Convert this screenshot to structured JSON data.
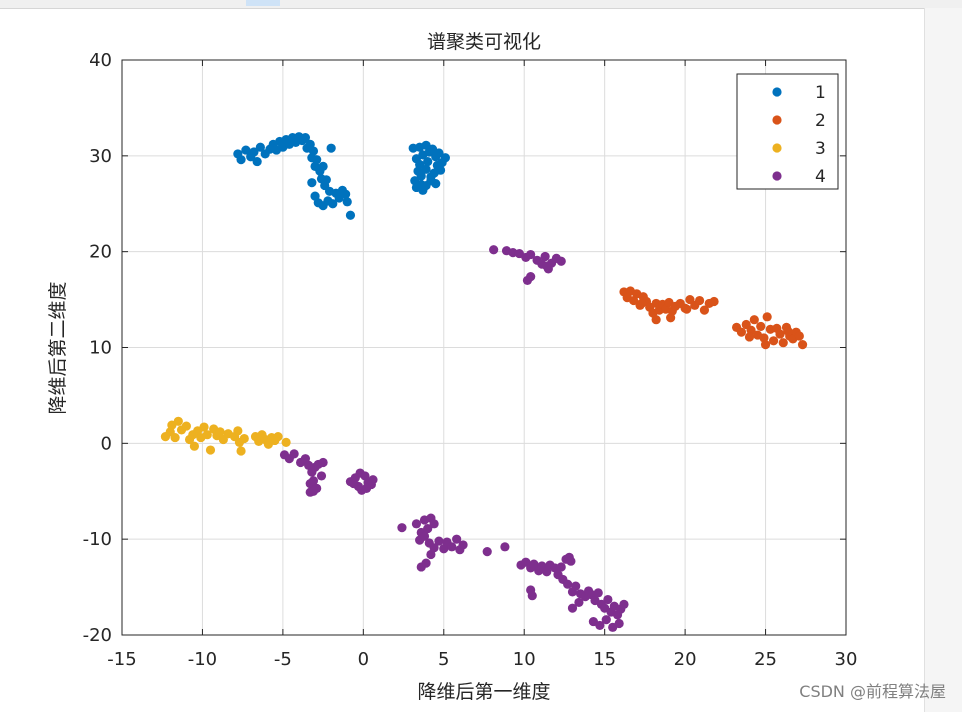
{
  "chart_data": {
    "type": "scatter",
    "title": "谱聚类可视化",
    "xlabel": "降维后第一维度",
    "ylabel": "降维后第二维度",
    "xlim": [
      -15,
      30
    ],
    "ylim": [
      -20,
      40
    ],
    "xticks": [
      -15,
      -10,
      -5,
      0,
      5,
      10,
      15,
      20,
      25,
      30
    ],
    "yticks": [
      -20,
      -10,
      0,
      10,
      20,
      30,
      40
    ],
    "grid": true,
    "legend_position": "top-right",
    "series": [
      {
        "name": "1",
        "color": "#0072BD",
        "points": [
          [
            -7.8,
            30.2
          ],
          [
            -7.6,
            29.6
          ],
          [
            -7.3,
            30.6
          ],
          [
            -7.0,
            29.9
          ],
          [
            -6.8,
            30.4
          ],
          [
            -6.6,
            29.4
          ],
          [
            -6.4,
            30.9
          ],
          [
            -6.1,
            30.2
          ],
          [
            -5.8,
            30.7
          ],
          [
            -5.6,
            31.2
          ],
          [
            -5.4,
            30.6
          ],
          [
            -5.2,
            31.5
          ],
          [
            -5.0,
            30.9
          ],
          [
            -4.8,
            31.7
          ],
          [
            -4.6,
            31.2
          ],
          [
            -4.4,
            31.9
          ],
          [
            -4.2,
            31.4
          ],
          [
            -4.0,
            32.0
          ],
          [
            -3.8,
            31.6
          ],
          [
            -3.6,
            31.9
          ],
          [
            -3.5,
            30.8
          ],
          [
            -3.3,
            31.2
          ],
          [
            -3.2,
            29.8
          ],
          [
            -3.1,
            30.5
          ],
          [
            -3.0,
            28.9
          ],
          [
            -2.9,
            29.6
          ],
          [
            -2.7,
            28.4
          ],
          [
            -2.6,
            27.6
          ],
          [
            -2.5,
            28.9
          ],
          [
            -2.4,
            26.9
          ],
          [
            -2.3,
            27.5
          ],
          [
            -2.1,
            26.3
          ],
          [
            -2.0,
            30.8
          ],
          [
            -3.2,
            27.2
          ],
          [
            -3.0,
            25.8
          ],
          [
            -2.8,
            25.1
          ],
          [
            -2.5,
            24.8
          ],
          [
            -2.2,
            25.3
          ],
          [
            -1.9,
            25.0
          ],
          [
            -1.7,
            26.1
          ],
          [
            -1.5,
            25.6
          ],
          [
            -1.3,
            26.4
          ],
          [
            -1.1,
            26.0
          ],
          [
            -0.8,
            23.8
          ],
          [
            -1.0,
            25.2
          ],
          [
            3.1,
            30.8
          ],
          [
            3.3,
            29.7
          ],
          [
            3.5,
            30.9
          ],
          [
            3.7,
            30.1
          ],
          [
            3.9,
            31.1
          ],
          [
            4.1,
            30.4
          ],
          [
            4.3,
            30.7
          ],
          [
            4.5,
            29.9
          ],
          [
            4.7,
            30.3
          ],
          [
            4.9,
            29.3
          ],
          [
            5.1,
            29.8
          ],
          [
            4.8,
            28.5
          ],
          [
            4.6,
            29.0
          ],
          [
            4.4,
            28.2
          ],
          [
            4.2,
            27.8
          ],
          [
            3.9,
            28.6
          ],
          [
            3.6,
            27.9
          ],
          [
            3.4,
            28.4
          ],
          [
            3.2,
            27.4
          ],
          [
            3.3,
            26.7
          ],
          [
            3.6,
            27.0
          ],
          [
            3.9,
            26.9
          ],
          [
            4.2,
            27.4
          ],
          [
            4.5,
            27.1
          ],
          [
            4.0,
            29.4
          ],
          [
            3.5,
            29.1
          ],
          [
            3.7,
            26.4
          ]
        ]
      },
      {
        "name": "2",
        "color": "#D95319",
        "points": [
          [
            16.2,
            15.8
          ],
          [
            16.4,
            15.2
          ],
          [
            16.6,
            15.9
          ],
          [
            16.8,
            14.9
          ],
          [
            17.0,
            15.6
          ],
          [
            17.2,
            14.4
          ],
          [
            17.4,
            15.3
          ],
          [
            17.6,
            14.8
          ],
          [
            17.8,
            14.2
          ],
          [
            18.0,
            13.6
          ],
          [
            18.2,
            14.6
          ],
          [
            18.4,
            13.9
          ],
          [
            18.6,
            14.5
          ],
          [
            18.8,
            14.0
          ],
          [
            19.0,
            14.7
          ],
          [
            19.2,
            13.8
          ],
          [
            19.4,
            14.3
          ],
          [
            19.7,
            14.6
          ],
          [
            20.0,
            14.1
          ],
          [
            20.3,
            15.0
          ],
          [
            20.6,
            14.4
          ],
          [
            20.9,
            14.9
          ],
          [
            21.2,
            13.9
          ],
          [
            21.5,
            14.6
          ],
          [
            21.8,
            14.8
          ],
          [
            20.1,
            14.0
          ],
          [
            19.1,
            13.1
          ],
          [
            18.2,
            12.9
          ],
          [
            17.3,
            14.6
          ],
          [
            23.2,
            12.1
          ],
          [
            23.5,
            11.6
          ],
          [
            23.8,
            12.4
          ],
          [
            24.1,
            11.8
          ],
          [
            24.3,
            12.9
          ],
          [
            24.5,
            11.3
          ],
          [
            24.7,
            12.2
          ],
          [
            24.9,
            11.0
          ],
          [
            25.1,
            13.2
          ],
          [
            25.3,
            11.9
          ],
          [
            25.5,
            10.7
          ],
          [
            25.7,
            12.0
          ],
          [
            25.9,
            11.4
          ],
          [
            26.1,
            10.5
          ],
          [
            26.3,
            12.1
          ],
          [
            26.5,
            11.2
          ],
          [
            26.7,
            10.9
          ],
          [
            26.9,
            11.6
          ],
          [
            27.1,
            11.2
          ],
          [
            27.3,
            10.3
          ],
          [
            24.0,
            11.1
          ],
          [
            25.0,
            10.3
          ],
          [
            26.4,
            11.7
          ]
        ]
      },
      {
        "name": "3",
        "color": "#EDB120",
        "points": [
          [
            -12.3,
            0.7
          ],
          [
            -12.0,
            1.2
          ],
          [
            -11.7,
            0.6
          ],
          [
            -11.5,
            2.3
          ],
          [
            -11.3,
            1.4
          ],
          [
            -11.0,
            1.8
          ],
          [
            -10.8,
            0.4
          ],
          [
            -10.5,
            -0.3
          ],
          [
            -10.3,
            1.3
          ],
          [
            -10.1,
            0.6
          ],
          [
            -9.9,
            1.7
          ],
          [
            -9.7,
            0.9
          ],
          [
            -9.5,
            -0.7
          ],
          [
            -9.3,
            1.5
          ],
          [
            -9.1,
            0.8
          ],
          [
            -8.9,
            1.2
          ],
          [
            -8.7,
            0.4
          ],
          [
            -8.4,
            1.0
          ],
          [
            -8.0,
            0.7
          ],
          [
            -7.8,
            1.3
          ],
          [
            -7.6,
            -0.8
          ],
          [
            -7.4,
            0.5
          ],
          [
            -7.7,
            0.1
          ],
          [
            -6.7,
            0.7
          ],
          [
            -6.5,
            0.2
          ],
          [
            -6.3,
            0.9
          ],
          [
            -6.1,
            0.4
          ],
          [
            -5.9,
            -0.1
          ],
          [
            -5.7,
            0.6
          ],
          [
            -5.5,
            0.3
          ],
          [
            -5.3,
            0.7
          ],
          [
            -4.8,
            0.1
          ],
          [
            -11.9,
            1.9
          ],
          [
            -10.6,
            0.9
          ]
        ]
      },
      {
        "name": "4",
        "color": "#7E2F8E",
        "points": [
          [
            8.1,
            20.2
          ],
          [
            8.9,
            20.1
          ],
          [
            9.3,
            19.9
          ],
          [
            9.7,
            19.8
          ],
          [
            10.1,
            19.4
          ],
          [
            10.4,
            19.7
          ],
          [
            10.8,
            19.1
          ],
          [
            11.1,
            18.7
          ],
          [
            11.3,
            19.5
          ],
          [
            11.5,
            18.2
          ],
          [
            11.7,
            18.8
          ],
          [
            12.0,
            19.3
          ],
          [
            12.3,
            19.0
          ],
          [
            10.2,
            17.0
          ],
          [
            10.4,
            17.4
          ],
          [
            11.4,
            18.5
          ],
          [
            -4.9,
            -1.2
          ],
          [
            -4.6,
            -1.6
          ],
          [
            -4.3,
            -1.1
          ],
          [
            -3.9,
            -2.0
          ],
          [
            -3.6,
            -1.6
          ],
          [
            -3.4,
            -2.3
          ],
          [
            -3.2,
            -3.0
          ],
          [
            -3.0,
            -2.5
          ],
          [
            -2.8,
            -2.2
          ],
          [
            -2.6,
            -3.4
          ],
          [
            -2.5,
            -2.0
          ],
          [
            -3.3,
            -4.2
          ],
          [
            -3.1,
            -3.9
          ],
          [
            -3.3,
            -5.1
          ],
          [
            -2.9,
            -4.7
          ],
          [
            -3.1,
            -5.0
          ],
          [
            -0.8,
            -4.0
          ],
          [
            -0.5,
            -3.6
          ],
          [
            -0.2,
            -3.1
          ],
          [
            0.1,
            -3.4
          ],
          [
            0.3,
            -4.1
          ],
          [
            0.5,
            -4.3
          ],
          [
            -0.1,
            -4.9
          ],
          [
            -0.3,
            -4.5
          ],
          [
            0.2,
            -4.7
          ],
          [
            -0.6,
            -4.2
          ],
          [
            0.6,
            -3.8
          ],
          [
            2.4,
            -8.8
          ],
          [
            3.3,
            -8.4
          ],
          [
            3.6,
            -9.3
          ],
          [
            3.8,
            -8.0
          ],
          [
            4.0,
            -8.9
          ],
          [
            4.2,
            -7.8
          ],
          [
            4.4,
            -8.4
          ],
          [
            3.5,
            -10.1
          ],
          [
            3.8,
            -9.7
          ],
          [
            4.1,
            -10.4
          ],
          [
            4.4,
            -10.9
          ],
          [
            4.7,
            -10.2
          ],
          [
            5.0,
            -11.0
          ],
          [
            5.2,
            -10.3
          ],
          [
            5.5,
            -10.8
          ],
          [
            5.8,
            -10.0
          ],
          [
            6.0,
            -11.1
          ],
          [
            6.2,
            -10.6
          ],
          [
            3.6,
            -12.9
          ],
          [
            3.9,
            -12.5
          ],
          [
            4.2,
            -11.6
          ],
          [
            7.7,
            -11.3
          ],
          [
            8.8,
            -10.8
          ],
          [
            9.8,
            -12.7
          ],
          [
            10.1,
            -12.4
          ],
          [
            10.4,
            -13.0
          ],
          [
            10.6,
            -12.6
          ],
          [
            10.9,
            -13.3
          ],
          [
            11.1,
            -12.8
          ],
          [
            11.4,
            -13.4
          ],
          [
            11.6,
            -12.7
          ],
          [
            11.9,
            -13.0
          ],
          [
            12.1,
            -13.7
          ],
          [
            12.3,
            -12.9
          ],
          [
            12.6,
            -12.1
          ],
          [
            12.8,
            -11.9
          ],
          [
            12.9,
            -12.3
          ],
          [
            10.4,
            -15.3
          ],
          [
            10.5,
            -15.9
          ],
          [
            12.4,
            -14.2
          ],
          [
            12.7,
            -14.7
          ],
          [
            13.0,
            -15.5
          ],
          [
            13.2,
            -14.9
          ],
          [
            13.5,
            -15.7
          ],
          [
            13.8,
            -16.0
          ],
          [
            14.0,
            -15.4
          ],
          [
            14.2,
            -15.8
          ],
          [
            14.4,
            -16.4
          ],
          [
            14.6,
            -15.6
          ],
          [
            14.8,
            -16.8
          ],
          [
            15.0,
            -17.2
          ],
          [
            15.2,
            -16.3
          ],
          [
            15.4,
            -17.6
          ],
          [
            15.6,
            -17.0
          ],
          [
            15.8,
            -17.9
          ],
          [
            16.0,
            -17.3
          ],
          [
            16.2,
            -16.8
          ],
          [
            14.3,
            -18.6
          ],
          [
            14.7,
            -19.0
          ],
          [
            15.1,
            -18.4
          ],
          [
            15.5,
            -19.2
          ],
          [
            15.9,
            -18.8
          ],
          [
            13.0,
            -17.2
          ],
          [
            13.4,
            -16.6
          ]
        ]
      }
    ]
  },
  "watermark": "CSDN @前程算法屋"
}
